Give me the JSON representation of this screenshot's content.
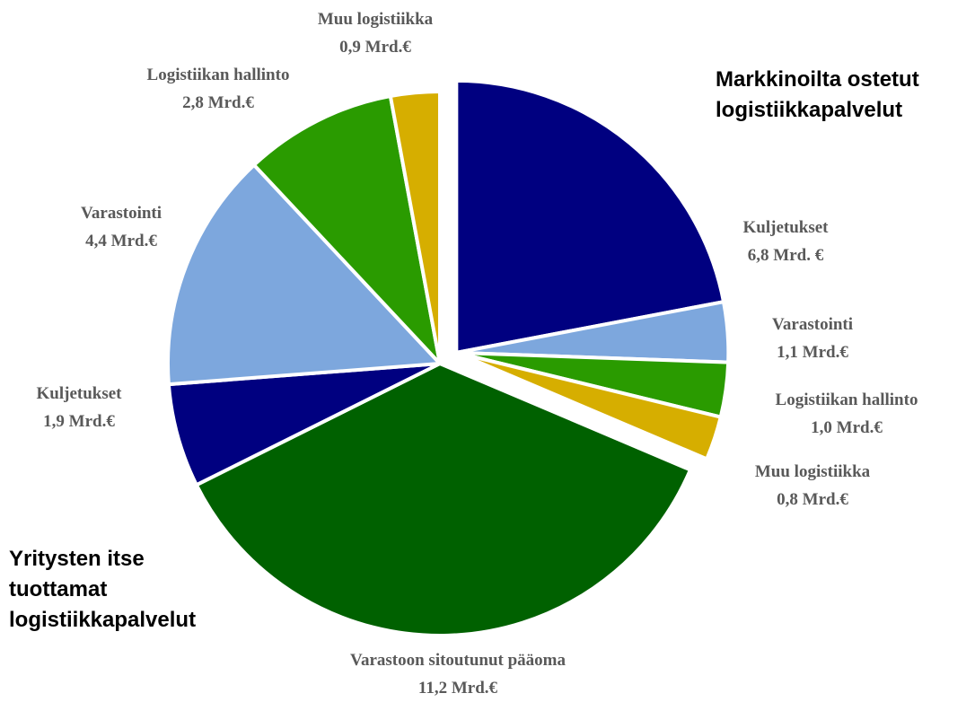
{
  "chart_data": {
    "type": "pie",
    "categories": [
      "Kuljetukset",
      "Varastointi",
      "Logistiikan hallinto",
      "Muu logistiikka",
      "Varastoon sitoutunut pääoma",
      "Kuljetukset",
      "Varastointi",
      "Logistiikan hallinto",
      "Muu logistiikka"
    ],
    "values": [
      6.8,
      1.1,
      1.0,
      0.8,
      11.2,
      1.9,
      4.4,
      2.8,
      0.9
    ],
    "value_labels": [
      "6,8 Mrd. €",
      "1,1 Mrd.€",
      "1,0 Mrd.€",
      "0,8 Mrd.€",
      "11,2 Mrd.€",
      "1,9 Mrd.€",
      "4,4 Mrd.€",
      "2,8 Mrd.€",
      "0,9 Mrd.€"
    ],
    "colors": [
      "#000080",
      "#7da7dd",
      "#2a9b00",
      "#d6ae00",
      "#006100",
      "#000080",
      "#7da7dd",
      "#2a9b00",
      "#d6ae00"
    ],
    "explode": [
      true,
      true,
      true,
      true,
      false,
      false,
      false,
      false,
      false
    ],
    "annotations": [
      "Markkinoilta ostetut logistiikkapalvelut",
      "Yritysten itse tuottamat logistiikkapalvelut"
    ]
  }
}
